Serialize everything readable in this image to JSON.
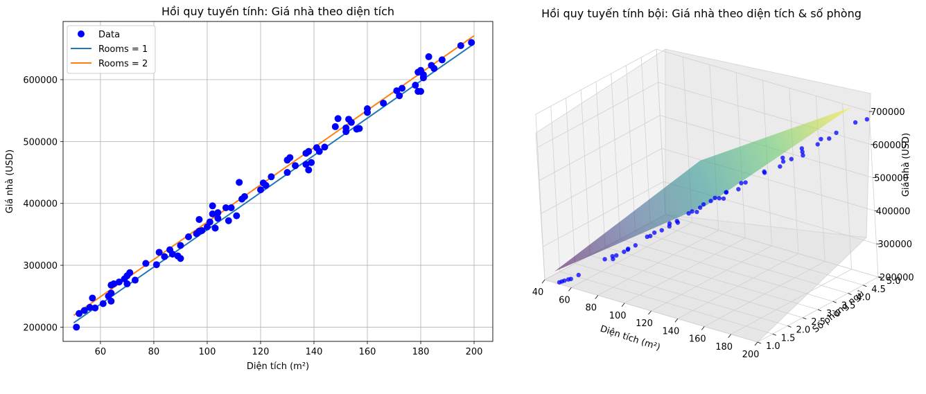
{
  "chart_data": [
    {
      "type": "scatter",
      "title": "Hồi quy tuyến tính: Giá nhà theo diện tích",
      "xlabel": "Diện tích (m²)",
      "ylabel": "Giá nhà (USD)",
      "xlim": [
        46,
        207
      ],
      "ylim": [
        177000,
        694000
      ],
      "xticks": [
        60,
        80,
        100,
        120,
        140,
        160,
        180,
        200
      ],
      "yticks": [
        200000,
        300000,
        400000,
        500000,
        600000
      ],
      "grid": true,
      "legend_placement": "top-left",
      "legend": [
        "Data",
        "Rooms = 1",
        "Rooms = 2"
      ],
      "colors": {
        "data": "#0000ff",
        "rooms1": "#1f77b4",
        "rooms2": "#ff7f0e"
      },
      "scatter_points": [
        [
          51,
          200000
        ],
        [
          52,
          222000
        ],
        [
          54,
          227000
        ],
        [
          56,
          232000
        ],
        [
          57,
          247000
        ],
        [
          58,
          231000
        ],
        [
          61,
          238000
        ],
        [
          63,
          250000
        ],
        [
          64,
          242000
        ],
        [
          64,
          255000
        ],
        [
          64,
          268000
        ],
        [
          65,
          270000
        ],
        [
          67,
          273000
        ],
        [
          69,
          278000
        ],
        [
          70,
          270000
        ],
        [
          70,
          283000
        ],
        [
          71,
          288000
        ],
        [
          73,
          276000
        ],
        [
          77,
          303000
        ],
        [
          81,
          301000
        ],
        [
          82,
          321000
        ],
        [
          84,
          314000
        ],
        [
          86,
          325000
        ],
        [
          87,
          318000
        ],
        [
          89,
          315000
        ],
        [
          90,
          311000
        ],
        [
          90,
          332000
        ],
        [
          93,
          346000
        ],
        [
          96,
          351000
        ],
        [
          97,
          374000
        ],
        [
          97,
          355000
        ],
        [
          98,
          356000
        ],
        [
          100,
          362000
        ],
        [
          101,
          370000
        ],
        [
          102,
          396000
        ],
        [
          102,
          383000
        ],
        [
          103,
          360000
        ],
        [
          104,
          376000
        ],
        [
          104,
          385000
        ],
        [
          107,
          393000
        ],
        [
          108,
          372000
        ],
        [
          109,
          393000
        ],
        [
          111,
          380000
        ],
        [
          112,
          434000
        ],
        [
          113,
          407000
        ],
        [
          114,
          411000
        ],
        [
          120,
          422000
        ],
        [
          121,
          433000
        ],
        [
          122,
          429000
        ],
        [
          124,
          443000
        ],
        [
          130,
          450000
        ],
        [
          130,
          470000
        ],
        [
          131,
          474000
        ],
        [
          133,
          461000
        ],
        [
          137,
          463000
        ],
        [
          137,
          481000
        ],
        [
          138,
          484000
        ],
        [
          138,
          454000
        ],
        [
          139,
          466000
        ],
        [
          141,
          490000
        ],
        [
          142,
          484000
        ],
        [
          144,
          491000
        ],
        [
          148,
          524000
        ],
        [
          149,
          537000
        ],
        [
          152,
          516000
        ],
        [
          152,
          522000
        ],
        [
          153,
          536000
        ],
        [
          154,
          531000
        ],
        [
          156,
          520000
        ],
        [
          157,
          521000
        ],
        [
          160,
          547000
        ],
        [
          160,
          553000
        ],
        [
          166,
          562000
        ],
        [
          171,
          582000
        ],
        [
          172,
          574000
        ],
        [
          173,
          586000
        ],
        [
          178,
          591000
        ],
        [
          179,
          581000
        ],
        [
          179,
          612000
        ],
        [
          180,
          615000
        ],
        [
          180,
          581000
        ],
        [
          181,
          603000
        ],
        [
          181,
          608000
        ],
        [
          183,
          637000
        ],
        [
          184,
          623000
        ],
        [
          185,
          618000
        ],
        [
          188,
          632000
        ],
        [
          195,
          655000
        ],
        [
          199,
          660000
        ]
      ],
      "series": [
        {
          "name": "Rooms = 1",
          "x": [
            50,
            200
          ],
          "values": [
            207000,
            658000
          ]
        },
        {
          "name": "Rooms = 2",
          "x": [
            50,
            200
          ],
          "values": [
            219000,
            671000
          ]
        }
      ]
    },
    {
      "type": "scatter",
      "subtype": "3d-surface",
      "title": "Hồi quy tuyến tính bội: Giá nhà theo diện tích & số phòng",
      "xlabel": "Diện tích (m²)",
      "ylabel": "Số phòng ngủ",
      "zlabel": "Giá nhà (USD)",
      "xticks": [
        40,
        60,
        80,
        100,
        120,
        140,
        160,
        180,
        200
      ],
      "yticks": [
        "1.0",
        "1.5",
        "2.0",
        "2.5",
        "3.0",
        "3.5",
        "4.0",
        "4.5",
        "5.0"
      ],
      "zticks": [
        "200000",
        "300000",
        "400000",
        "500000",
        "600000",
        "700000"
      ],
      "xlim": [
        40,
        200
      ],
      "ylim": [
        1,
        5
      ],
      "zlim": [
        200000,
        700000
      ],
      "grid": true,
      "surface_colormap": "viridis",
      "points": [
        [
          51,
          1,
          205000
        ],
        [
          53,
          1,
          210000
        ],
        [
          55,
          1,
          215000
        ],
        [
          58,
          1,
          222000
        ],
        [
          60,
          1,
          226000
        ],
        [
          63,
          2,
          240000
        ],
        [
          66,
          1,
          245000
        ],
        [
          69,
          2,
          256000
        ],
        [
          72,
          2,
          262000
        ],
        [
          75,
          3,
          275000
        ],
        [
          78,
          2,
          280000
        ],
        [
          81,
          2,
          290000
        ],
        [
          84,
          3,
          303000
        ],
        [
          87,
          2,
          310000
        ],
        [
          90,
          3,
          322000
        ],
        [
          93,
          1,
          325000
        ],
        [
          96,
          3,
          345000
        ],
        [
          99,
          4,
          360000
        ],
        [
          102,
          2,
          366000
        ],
        [
          105,
          1,
          370000
        ],
        [
          108,
          3,
          388000
        ],
        [
          111,
          4,
          400000
        ],
        [
          114,
          2,
          408000
        ],
        [
          117,
          3,
          420000
        ],
        [
          120,
          1,
          424000
        ],
        [
          123,
          4,
          442000
        ],
        [
          126,
          3,
          450000
        ],
        [
          129,
          2,
          456000
        ],
        [
          132,
          5,
          480000
        ],
        [
          135,
          3,
          478000
        ],
        [
          138,
          2,
          484000
        ],
        [
          141,
          4,
          498000
        ],
        [
          144,
          1,
          495000
        ],
        [
          147,
          5,
          526000
        ],
        [
          150,
          3,
          525000
        ],
        [
          153,
          2,
          530000
        ],
        [
          156,
          4,
          546000
        ],
        [
          159,
          1,
          545000
        ],
        [
          162,
          5,
          572000
        ],
        [
          165,
          3,
          572000
        ],
        [
          168,
          2,
          575000
        ],
        [
          171,
          4,
          593000
        ],
        [
          174,
          5,
          605000
        ],
        [
          177,
          3,
          605000
        ],
        [
          180,
          1,
          610000
        ],
        [
          183,
          4,
          630000
        ],
        [
          186,
          3,
          638000
        ],
        [
          189,
          5,
          654000
        ],
        [
          192,
          4,
          658000
        ],
        [
          195,
          3,
          660000
        ],
        [
          198,
          5,
          674000
        ]
      ]
    }
  ]
}
